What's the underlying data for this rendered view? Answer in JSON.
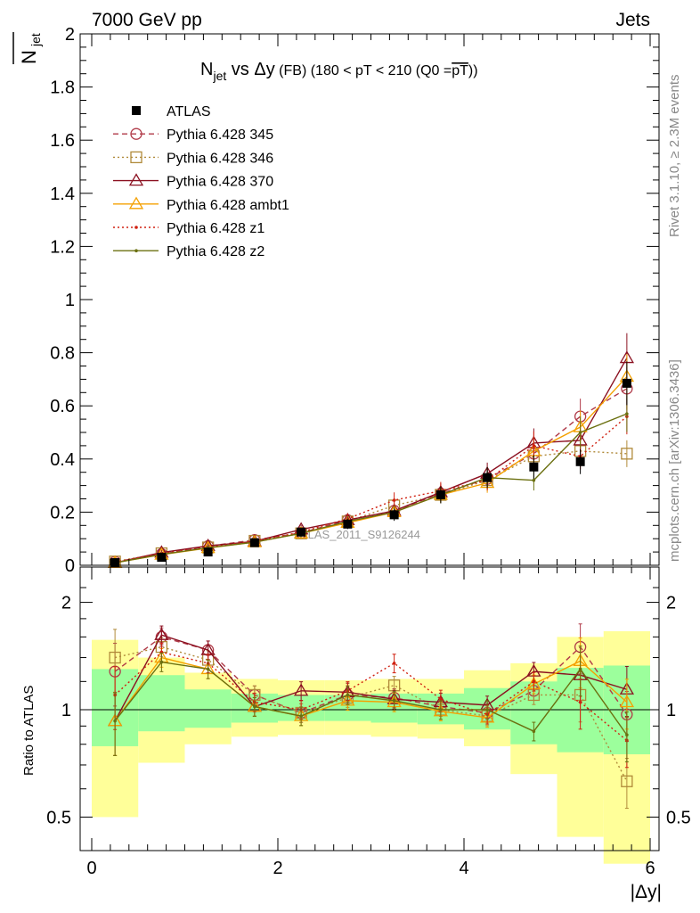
{
  "header": {
    "energy_label": "7000 GeV pp",
    "process_label": "Jets",
    "title_main": "N",
    "title_sub": "jet",
    "title_rest": " vs Δy",
    "title_small": " (FB) (180 < pT < 210 (Q0 =",
    "title_bar": "pT",
    "title_close": "))",
    "side_rivet": "Rivet 3.1.10, ≥ 2.3M events",
    "side_mcplots": "mcplots.cern.ch [arXiv:1306.3436]",
    "watermark": "ATLAS_2011_S9126244"
  },
  "colors": {
    "atlas": "#000000",
    "p345": "#b03a48",
    "p346": "#b08a3a",
    "p370": "#8b1020",
    "ambt1": "#f4a000",
    "z1": "#d02010",
    "z2": "#6b7010",
    "band_inner": "#9cff9c",
    "band_outer": "#ffff99"
  },
  "chart_data": [
    {
      "type": "line",
      "ylabel_main": "N",
      "ylabel_sub": "jet",
      "ylim": [
        0,
        2
      ],
      "xlim": [
        -0.15,
        6.05
      ],
      "yticks": [
        "0",
        "0.2",
        "0.4",
        "0.6",
        "0.8",
        "1",
        "1.2",
        "1.4",
        "1.6",
        "1.8",
        "2"
      ],
      "x": [
        0.25,
        0.75,
        1.25,
        1.75,
        2.25,
        2.75,
        3.25,
        3.75,
        4.25,
        4.75,
        5.25,
        5.75
      ],
      "legend": "top-left",
      "series": [
        {
          "name": "ATLAS",
          "values": [
            0.01,
            0.03,
            0.05,
            0.085,
            0.125,
            0.155,
            0.19,
            0.265,
            0.33,
            0.37,
            0.39,
            0.685
          ]
        },
        {
          "name": "Pythia 6.428 345",
          "values": [
            0.013,
            0.042,
            0.072,
            0.095,
            0.122,
            0.17,
            0.205,
            0.27,
            0.325,
            0.42,
            0.56,
            0.665
          ]
        },
        {
          "name": "Pythia 6.428 346",
          "values": [
            0.014,
            0.045,
            0.067,
            0.092,
            0.12,
            0.165,
            0.225,
            0.265,
            0.32,
            0.41,
            0.43,
            0.42
          ]
        },
        {
          "name": "Pythia 6.428 370",
          "values": [
            0.0095,
            0.048,
            0.073,
            0.09,
            0.135,
            0.17,
            0.205,
            0.275,
            0.345,
            0.46,
            0.47,
            0.78
          ]
        },
        {
          "name": "Pythia 6.428 ambt1",
          "values": [
            0.0095,
            0.04,
            0.065,
            0.087,
            0.12,
            0.16,
            0.2,
            0.265,
            0.31,
            0.43,
            0.52,
            0.71
          ]
        },
        {
          "name": "Pythia 6.428 z1",
          "values": [
            0.012,
            0.044,
            0.068,
            0.09,
            0.125,
            0.175,
            0.245,
            0.28,
            0.32,
            0.45,
            0.41,
            0.56
          ]
        },
        {
          "name": "Pythia 6.428 z2",
          "values": [
            0.0095,
            0.041,
            0.066,
            0.087,
            0.12,
            0.165,
            0.2,
            0.265,
            0.33,
            0.32,
            0.5,
            0.57
          ]
        }
      ]
    },
    {
      "type": "line",
      "ylabel": "Ratio to ATLAS",
      "ylim": [
        0.4,
        2.4
      ],
      "xlim": [
        -0.15,
        6.05
      ],
      "yscale": "log",
      "yticks": [
        "0.5",
        "1",
        "2"
      ],
      "xticks": [
        "0",
        "2",
        "4",
        "6"
      ],
      "xlabel": "|Δy|",
      "x": [
        0.25,
        0.75,
        1.25,
        1.75,
        2.25,
        2.75,
        3.25,
        3.75,
        4.25,
        4.75,
        5.25,
        5.75
      ],
      "band_edges": [
        0,
        0.5,
        1,
        1.5,
        2,
        2.5,
        3,
        3.5,
        4,
        4.5,
        5,
        5.5,
        6
      ],
      "band_inner_low": [
        0.79,
        0.87,
        0.89,
        0.92,
        0.93,
        0.93,
        0.92,
        0.91,
        0.88,
        0.8,
        0.76,
        0.75
      ],
      "band_inner_high": [
        1.3,
        1.25,
        1.14,
        1.11,
        1.1,
        1.1,
        1.11,
        1.11,
        1.15,
        1.2,
        1.31,
        1.33
      ],
      "band_outer_low": [
        0.5,
        0.71,
        0.8,
        0.84,
        0.85,
        0.85,
        0.84,
        0.83,
        0.79,
        0.66,
        0.44,
        0.37
      ],
      "band_outer_high": [
        1.57,
        1.4,
        1.27,
        1.22,
        1.21,
        1.21,
        1.22,
        1.22,
        1.29,
        1.35,
        1.6,
        1.66
      ],
      "series": [
        {
          "name": "Pythia 6.428 345",
          "values": [
            1.28,
            1.6,
            1.47,
            1.1,
            0.98,
            1.1,
            1.08,
            1.02,
            0.98,
            1.13,
            1.5,
            0.97
          ]
        },
        {
          "name": "Pythia 6.428 346",
          "values": [
            1.4,
            1.5,
            1.38,
            1.1,
            0.98,
            1.08,
            1.17,
            1.0,
            0.96,
            1.1,
            1.1,
            0.63
          ]
        },
        {
          "name": "Pythia 6.428 370",
          "values": [
            0.93,
            1.62,
            1.47,
            1.02,
            1.13,
            1.12,
            1.07,
            1.05,
            1.03,
            1.28,
            1.25,
            1.14
          ]
        },
        {
          "name": "Pythia 6.428 ambt1",
          "values": [
            0.93,
            1.4,
            1.3,
            1.02,
            0.96,
            1.06,
            1.05,
            0.99,
            0.95,
            1.18,
            1.37,
            1.05
          ]
        },
        {
          "name": "Pythia 6.428 z1",
          "values": [
            1.1,
            1.45,
            1.35,
            1.05,
            1.0,
            1.13,
            1.35,
            1.07,
            0.97,
            1.2,
            1.05,
            0.82
          ]
        },
        {
          "name": "Pythia 6.428 z2",
          "values": [
            0.93,
            1.36,
            1.3,
            1.02,
            0.96,
            1.1,
            1.06,
            1.0,
            1.0,
            0.87,
            1.3,
            0.85
          ]
        }
      ]
    }
  ]
}
